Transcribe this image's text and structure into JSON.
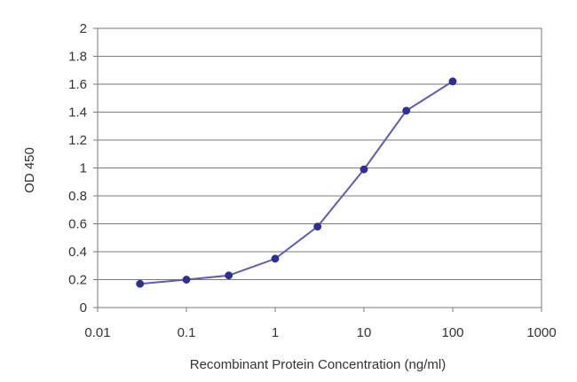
{
  "chart_data": {
    "type": "line",
    "xlabel": "Recombinant Protein Concentration (ng/ml)",
    "ylabel": "OD 450",
    "x_scale": "log",
    "xlim": [
      0.01,
      1000
    ],
    "ylim": [
      0,
      2
    ],
    "x_ticks": [
      "0.01",
      "0.1",
      "1",
      "10",
      "100",
      "1000"
    ],
    "y_ticks": [
      "0",
      "0.2",
      "0.4",
      "0.6",
      "0.8",
      "1",
      "1.2",
      "1.4",
      "1.6",
      "1.8",
      "2"
    ],
    "grid": "horizontal",
    "series": [
      {
        "x": [
          0.03,
          0.1,
          0.3,
          1,
          3,
          10,
          30,
          100
        ],
        "y": [
          0.17,
          0.2,
          0.23,
          0.35,
          0.58,
          0.99,
          1.41,
          1.62
        ]
      }
    ],
    "colors": {
      "line": "#5b5bbf",
      "marker": "#2e2e99",
      "grid": "#7a7a7a",
      "axis": "#7a7a7a",
      "text": "#333333"
    }
  }
}
